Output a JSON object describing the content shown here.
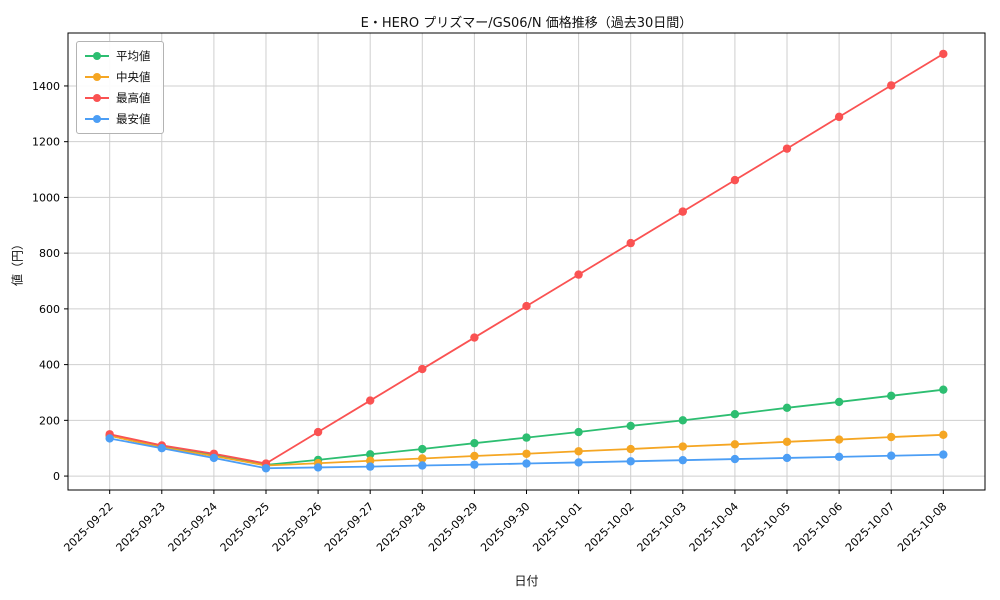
{
  "chart_data": {
    "type": "line",
    "title": "E・HERO プリズマー/GS06/N 価格推移（過去30日間）",
    "xlabel": "日付",
    "ylabel": "値（円）",
    "categories": [
      "2025-09-22",
      "2025-09-23",
      "2025-09-24",
      "2025-09-25",
      "2025-09-26",
      "2025-09-27",
      "2025-09-28",
      "2025-09-29",
      "2025-09-30",
      "2025-10-01",
      "2025-10-02",
      "2025-10-03",
      "2025-10-04",
      "2025-10-05",
      "2025-10-06",
      "2025-10-07",
      "2025-10-08"
    ],
    "series": [
      {
        "key": "average",
        "name": "平均値",
        "color": "#2dbe71",
        "values": [
          145,
          105,
          75,
          40,
          58,
          78,
          97,
          118,
          138,
          158,
          180,
          200,
          222,
          245,
          266,
          288,
          310
        ]
      },
      {
        "key": "median",
        "name": "中央値",
        "color": "#f5a623",
        "values": [
          145,
          103,
          72,
          38,
          46,
          55,
          63,
          72,
          80,
          89,
          97,
          106,
          114,
          123,
          131,
          140,
          148
        ]
      },
      {
        "key": "max",
        "name": "最高値",
        "color": "#fa5252",
        "values": [
          150,
          110,
          80,
          45,
          158,
          271,
          384,
          497,
          610,
          723,
          836,
          949,
          1062,
          1175,
          1289,
          1402,
          1515
        ]
      },
      {
        "key": "min",
        "name": "最安値",
        "color": "#4c9ef5",
        "values": [
          135,
          100,
          65,
          28,
          31,
          34,
          38,
          41,
          45,
          49,
          53,
          57,
          61,
          65,
          69,
          73,
          77
        ]
      }
    ],
    "ylim": [
      -50,
      1590
    ],
    "yticks": [
      0,
      200,
      400,
      600,
      800,
      1000,
      1200,
      1400
    ],
    "grid": true,
    "grid_color": "#cfcfcf",
    "legend_position": "upper-left",
    "x_margin": 0.8
  }
}
